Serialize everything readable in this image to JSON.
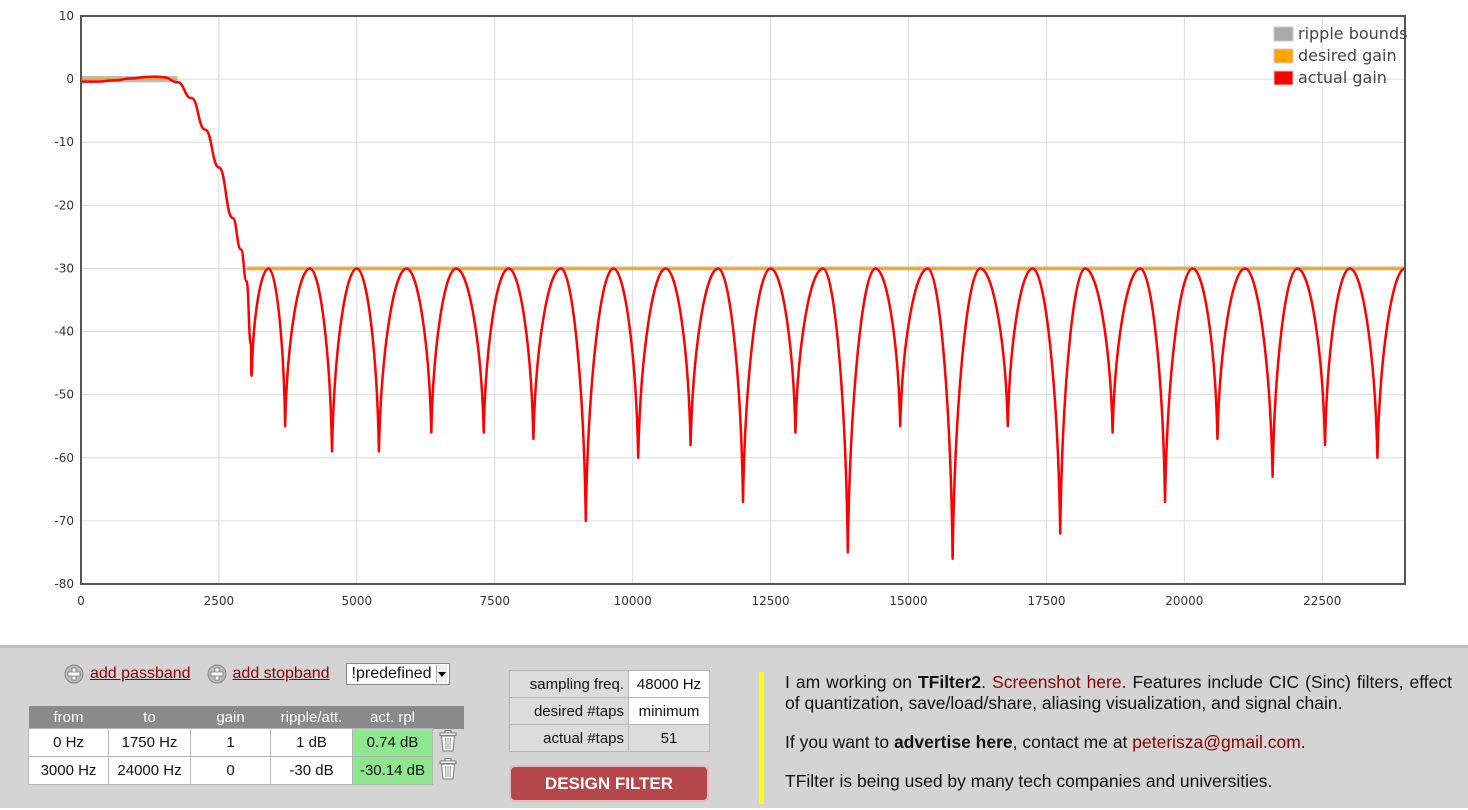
{
  "chart_data": {
    "type": "line",
    "title": "",
    "xlabel": "",
    "ylabel": "",
    "xlim": [
      0,
      24000
    ],
    "ylim": [
      -80,
      10
    ],
    "x_ticks": [
      0,
      2500,
      5000,
      7500,
      10000,
      12500,
      15000,
      17500,
      20000,
      22500
    ],
    "y_ticks": [
      10,
      0,
      -10,
      -20,
      -30,
      -40,
      -50,
      -60,
      -70,
      -80
    ],
    "grid": true,
    "legend_position": "top-right",
    "legend": [
      "ripple bounds",
      "desired gain",
      "actual gain"
    ],
    "colors": {
      "ripple": "#aaaaaa",
      "desired": "#ffa500",
      "actual": "#ff0000"
    },
    "ripple_bounds": [
      {
        "x": [
          0,
          1750
        ],
        "upper": 0.5,
        "lower": -0.5
      },
      {
        "x": [
          3000,
          24000
        ],
        "upper": -30,
        "lower": -30
      }
    ],
    "desired_gain": [
      {
        "x": [
          0,
          1750
        ],
        "value": 0
      },
      {
        "x": [
          3000,
          24000
        ],
        "value": -30
      }
    ],
    "actual_gain": {
      "x": [
        0,
        300,
        600,
        900,
        1200,
        1350,
        1500,
        1750,
        2000,
        2250,
        2500,
        2750,
        2900,
        3000,
        3080,
        3090,
        3100,
        3400,
        3700,
        4150,
        4550,
        5000,
        5400,
        5900,
        6350,
        6800,
        7300,
        7750,
        8200,
        8700,
        9150,
        9650,
        10100,
        10600,
        11050,
        11550,
        12000,
        12500,
        12950,
        13450,
        13900,
        14400,
        14850,
        15350,
        15800,
        16300,
        16800,
        17250,
        17750,
        18200,
        18700,
        19200,
        19650,
        20150,
        20600,
        21100,
        21600,
        22050,
        22550,
        23000,
        23500,
        24000
      ],
      "y": [
        -0.4,
        -0.4,
        -0.2,
        0.1,
        0.35,
        0.4,
        0.3,
        -0.5,
        -3,
        -8,
        -14,
        -22,
        -27,
        -32,
        -42,
        -47,
        -46,
        -30,
        -55,
        -30,
        -59,
        -30,
        -59,
        -30,
        -56,
        -30,
        -56,
        -30,
        -57,
        -30,
        -70,
        -30,
        -60,
        -30,
        -58,
        -30,
        -67,
        -30,
        -56,
        -30,
        -75,
        -30,
        -55,
        -30,
        -76,
        -30,
        -55,
        -30,
        -72,
        -30,
        -56,
        -30,
        -67,
        -30,
        -57,
        -30,
        -63,
        -30,
        -58,
        -30,
        -60,
        -30
      ]
    }
  },
  "controls": {
    "add_passband": "add passband",
    "add_stopband": "add stopband",
    "predefined": "!predefined"
  },
  "bands": {
    "headers": [
      "from",
      "to",
      "gain",
      "ripple/att.",
      "act. rpl"
    ],
    "rows": [
      {
        "from": "0 Hz",
        "to": "1750 Hz",
        "gain": "1",
        "ripple": "1 dB",
        "act": "0.74 dB"
      },
      {
        "from": "3000 Hz",
        "to": "24000 Hz",
        "gain": "0",
        "ripple": "-30 dB",
        "act": "-30.14 dB"
      }
    ]
  },
  "params": {
    "sampling_label": "sampling freq.",
    "sampling_value": "48000 Hz",
    "desired_label": "desired #taps",
    "desired_value": "minimum",
    "actual_label": "actual #taps",
    "actual_value": "51"
  },
  "design_button": "DESIGN FILTER",
  "info": {
    "p1_a": "I am working on ",
    "p1_b": "TFilter2",
    "p1_c": ". ",
    "p1_link": "Screenshot here.",
    "p1_d": " Features include CIC (Sinc) filters, effect of quantization, save/load/share, aliasing visualization, and signal chain.",
    "p2_a": "If you want to ",
    "p2_b": "advertise here",
    "p2_c": ", contact me at ",
    "p2_email": "peterisza@gmail.com",
    "p2_d": ".",
    "p3": "TFilter is being used by many tech companies and universities."
  }
}
